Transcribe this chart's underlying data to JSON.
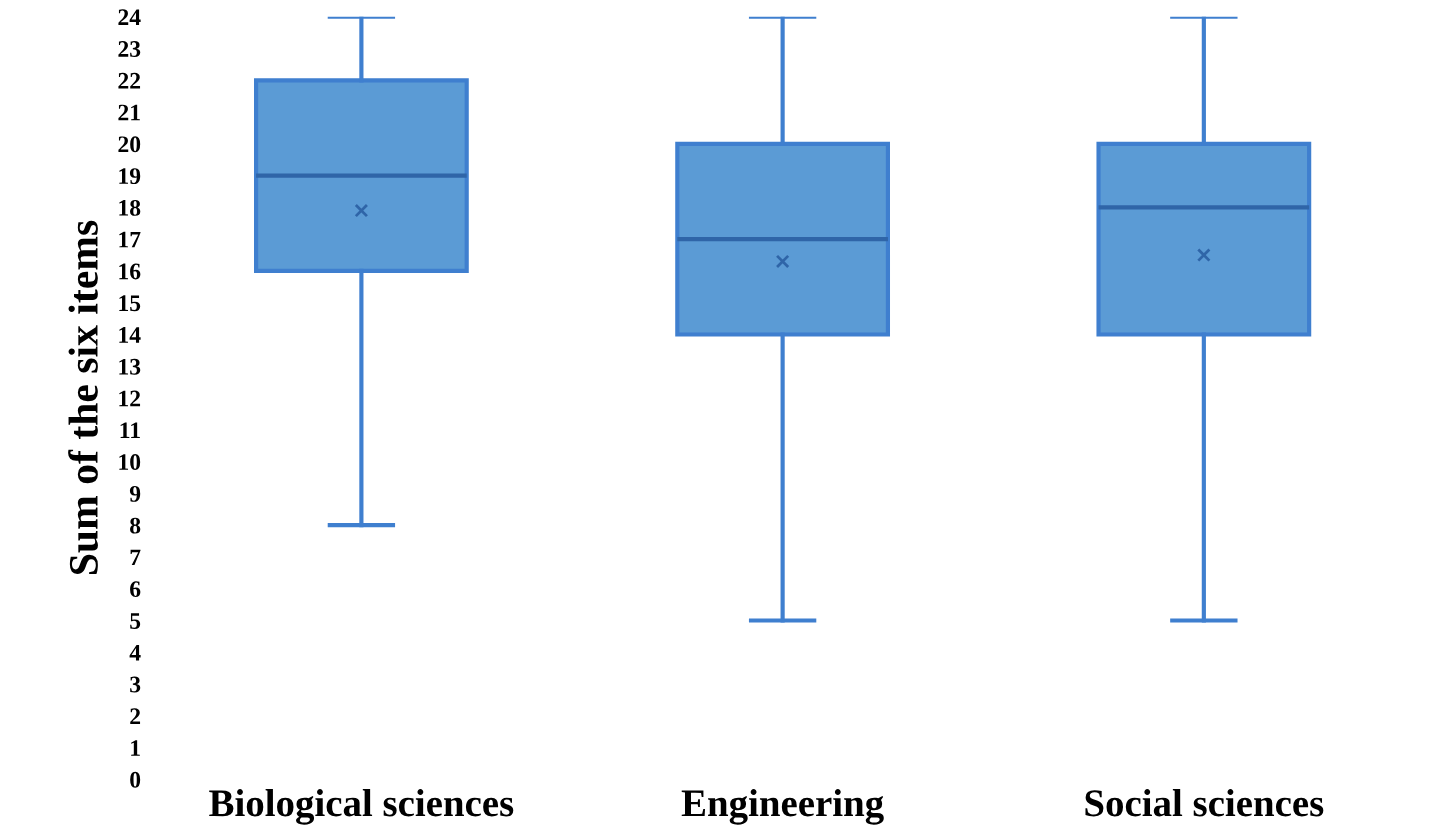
{
  "chart_data": {
    "type": "box",
    "ylabel": "Sum of the six items",
    "categories": [
      "Biological sciences",
      "Engineering",
      "Social sciences"
    ],
    "boxes": [
      {
        "low": 8,
        "q1": 16,
        "median": 19,
        "q3": 22,
        "high": 24,
        "mean": 17.9
      },
      {
        "low": 5,
        "q1": 14,
        "median": 17,
        "q3": 20,
        "high": 24,
        "mean": 16.3
      },
      {
        "low": 5,
        "q1": 14,
        "median": 18,
        "q3": 20,
        "high": 24,
        "mean": 16.5
      }
    ],
    "color": "#5b9bd5",
    "ylim": [
      0,
      24
    ],
    "yticks": [
      0,
      1,
      2,
      3,
      4,
      5,
      6,
      7,
      8,
      9,
      10,
      11,
      12,
      13,
      14,
      15,
      16,
      17,
      18,
      19,
      20,
      21,
      22,
      23,
      24
    ],
    "grid": false,
    "legend": false
  }
}
